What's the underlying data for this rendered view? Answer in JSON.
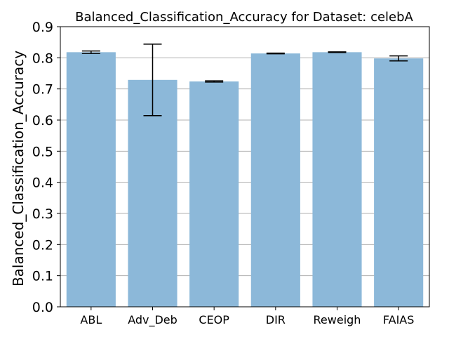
{
  "chart_data": {
    "type": "bar",
    "title": "Balanced_Classification_Accuracy for Dataset: celebA",
    "xlabel": "",
    "ylabel": "Balanced_Classification_Accuracy",
    "categories": [
      "ABL",
      "Adv_Deb",
      "CEOP",
      "DIR",
      "Reweigh",
      "FAIAS"
    ],
    "values": [
      0.818,
      0.729,
      0.724,
      0.814,
      0.818,
      0.798
    ],
    "error": [
      0.004,
      0.115,
      0.002,
      0.001,
      0.001,
      0.008
    ],
    "ylim": [
      0,
      0.9
    ],
    "yticks": [
      "0.0",
      "0.1",
      "0.2",
      "0.3",
      "0.4",
      "0.5",
      "0.6",
      "0.7",
      "0.8",
      "0.9"
    ],
    "grid": "horizontal",
    "bar_color": "#8cb8d9",
    "error_color": "#000000",
    "grid_color": "#b0b0b0"
  }
}
